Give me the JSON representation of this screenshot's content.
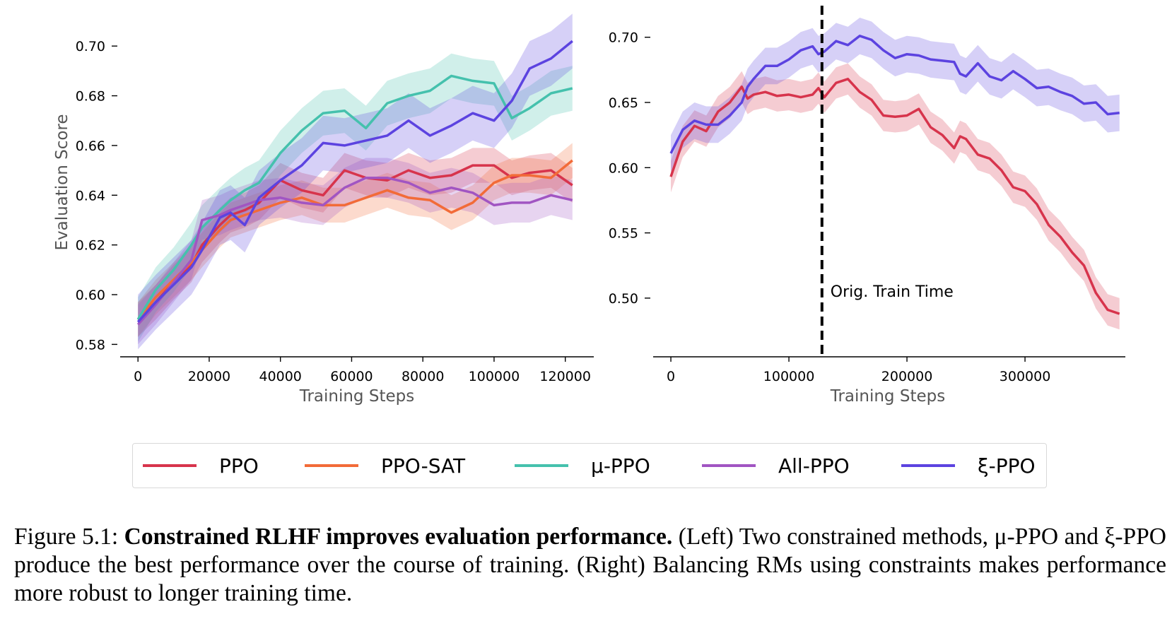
{
  "chart_data": [
    {
      "type": "line",
      "xlabel": "Training Steps",
      "ylabel": "Evaluation Score",
      "xlim": [
        -5000,
        128000
      ],
      "ylim": [
        0.575,
        0.71
      ],
      "xticks": [
        0,
        20000,
        40000,
        60000,
        80000,
        100000,
        120000
      ],
      "yticks": [
        0.58,
        0.6,
        0.62,
        0.64,
        0.66,
        0.68,
        0.7
      ],
      "x": [
        0,
        5000,
        10000,
        15000,
        18000,
        23000,
        26000,
        30000,
        34000,
        40000,
        46000,
        52000,
        58000,
        64000,
        70000,
        76000,
        82000,
        88000,
        94000,
        100000,
        105000,
        110000,
        116000,
        122000
      ],
      "series": [
        {
          "name": "PPO",
          "color": "#d7344c",
          "values": [
            0.59,
            0.597,
            0.605,
            0.612,
            0.62,
            0.628,
            0.632,
            0.634,
            0.637,
            0.646,
            0.642,
            0.64,
            0.65,
            0.647,
            0.646,
            0.65,
            0.647,
            0.648,
            0.652,
            0.652,
            0.647,
            0.649,
            0.65,
            0.644
          ],
          "band": 0.007
        },
        {
          "name": "PPO-SAT",
          "color": "#f26b38",
          "values": [
            0.59,
            0.599,
            0.606,
            0.613,
            0.618,
            0.626,
            0.63,
            0.632,
            0.634,
            0.637,
            0.639,
            0.636,
            0.636,
            0.639,
            0.642,
            0.639,
            0.638,
            0.633,
            0.637,
            0.645,
            0.648,
            0.648,
            0.647,
            0.654
          ],
          "band": 0.007
        },
        {
          "name": "μ-PPO",
          "color": "#45c1ad",
          "values": [
            0.59,
            0.602,
            0.61,
            0.62,
            0.627,
            0.634,
            0.638,
            0.642,
            0.645,
            0.657,
            0.666,
            0.673,
            0.674,
            0.667,
            0.677,
            0.68,
            0.682,
            0.688,
            0.686,
            0.685,
            0.671,
            0.675,
            0.681,
            0.683
          ],
          "band": 0.009
        },
        {
          "name": "All-PPO",
          "color": "#a155c2",
          "values": [
            0.588,
            0.596,
            0.605,
            0.614,
            0.63,
            0.632,
            0.634,
            0.636,
            0.638,
            0.639,
            0.637,
            0.636,
            0.643,
            0.647,
            0.647,
            0.645,
            0.641,
            0.643,
            0.641,
            0.636,
            0.637,
            0.637,
            0.64,
            0.638
          ],
          "band": 0.008
        },
        {
          "name": "ξ-PPO",
          "color": "#5c43e0",
          "values": [
            0.589,
            0.597,
            0.604,
            0.611,
            0.618,
            0.631,
            0.633,
            0.628,
            0.639,
            0.646,
            0.652,
            0.661,
            0.66,
            0.662,
            0.664,
            0.67,
            0.664,
            0.668,
            0.673,
            0.67,
            0.678,
            0.691,
            0.695,
            0.702
          ],
          "band": 0.011
        }
      ]
    },
    {
      "type": "line",
      "xlabel": "Training Steps",
      "ylabel": "",
      "xlim": [
        -15000,
        385000
      ],
      "ylim": [
        0.455,
        0.715
      ],
      "xticks": [
        0,
        100000,
        200000,
        300000
      ],
      "yticks": [
        0.5,
        0.55,
        0.6,
        0.65,
        0.7
      ],
      "vline": {
        "x": 128000,
        "label": "Orig. Train Time"
      },
      "series": [
        {
          "name": "PPO",
          "color": "#d7344c",
          "band": 0.012,
          "x": [
            0,
            10000,
            20000,
            30000,
            40000,
            50000,
            60000,
            65000,
            70000,
            80000,
            90000,
            100000,
            110000,
            120000,
            125000,
            130000,
            140000,
            150000,
            160000,
            170000,
            180000,
            190000,
            200000,
            210000,
            220000,
            230000,
            240000,
            245000,
            250000,
            260000,
            270000,
            280000,
            290000,
            300000,
            310000,
            320000,
            330000,
            340000,
            350000,
            360000,
            370000,
            380000
          ],
          "values": [
            0.593,
            0.62,
            0.632,
            0.628,
            0.643,
            0.65,
            0.662,
            0.653,
            0.656,
            0.658,
            0.655,
            0.656,
            0.654,
            0.656,
            0.661,
            0.654,
            0.665,
            0.668,
            0.658,
            0.652,
            0.64,
            0.639,
            0.64,
            0.645,
            0.631,
            0.625,
            0.615,
            0.624,
            0.622,
            0.61,
            0.607,
            0.598,
            0.585,
            0.582,
            0.572,
            0.556,
            0.547,
            0.535,
            0.525,
            0.504,
            0.491,
            0.488
          ]
        },
        {
          "name": "ξ-PPO",
          "color": "#5c43e0",
          "band": 0.014,
          "x": [
            0,
            10000,
            20000,
            30000,
            40000,
            50000,
            60000,
            65000,
            70000,
            80000,
            90000,
            100000,
            110000,
            120000,
            125000,
            130000,
            140000,
            150000,
            160000,
            170000,
            180000,
            190000,
            200000,
            210000,
            220000,
            230000,
            240000,
            245000,
            250000,
            260000,
            270000,
            280000,
            290000,
            300000,
            310000,
            320000,
            330000,
            340000,
            350000,
            360000,
            370000,
            380000
          ],
          "values": [
            0.611,
            0.629,
            0.636,
            0.633,
            0.633,
            0.64,
            0.65,
            0.662,
            0.668,
            0.678,
            0.678,
            0.683,
            0.69,
            0.693,
            0.687,
            0.689,
            0.697,
            0.694,
            0.701,
            0.698,
            0.69,
            0.684,
            0.687,
            0.686,
            0.683,
            0.682,
            0.681,
            0.672,
            0.67,
            0.68,
            0.67,
            0.667,
            0.674,
            0.668,
            0.661,
            0.662,
            0.658,
            0.655,
            0.649,
            0.65,
            0.641,
            0.642
          ]
        }
      ]
    }
  ],
  "legend": [
    {
      "label": "PPO",
      "color": "#d7344c"
    },
    {
      "label": "PPO-SAT",
      "color": "#f26b38"
    },
    {
      "label": "μ-PPO",
      "color": "#45c1ad"
    },
    {
      "label": "All-PPO",
      "color": "#a155c2"
    },
    {
      "label": "ξ-PPO",
      "color": "#5c43e0"
    }
  ],
  "caption": {
    "prefix": "Figure 5.1:",
    "bold": "Constrained RLHF improves evaluation performance.",
    "rest": "(Left) Two constrained methods, μ-PPO and ξ-PPO produce the best performance over the course of training. (Right) Balancing RMs using constraints makes performance more robust to longer training time."
  }
}
